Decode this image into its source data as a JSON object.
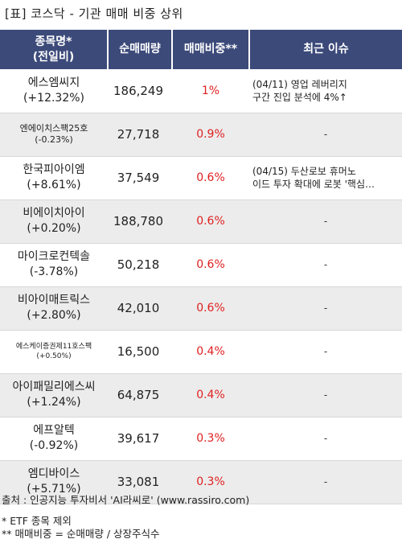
{
  "title": "[표] 코스닥 - 기관 매매 비중 상위",
  "headers": {
    "name_line1": "종목명*",
    "name_line2": "(전일비)",
    "volume": "순매매량",
    "ratio": "매매비중**",
    "issue": "최근 이슈"
  },
  "rows": [
    {
      "name": "에스엠씨지",
      "change": "(+12.32%)",
      "volume": "186,249",
      "ratio": "1%",
      "issue_line1": "(04/11) 영업 레버리지",
      "issue_line2": "구간 진입 분석에 4%↑"
    },
    {
      "name": "엔에이치스팩25호",
      "change": "(-0.23%)",
      "volume": "27,718",
      "ratio": "0.9%",
      "issue_line1": "-",
      "issue_line2": ""
    },
    {
      "name": "한국피아이엠",
      "change": "(+8.61%)",
      "volume": "37,549",
      "ratio": "0.6%",
      "issue_line1": "(04/15) 두산로보 휴머노",
      "issue_line2": "이드 투자 확대에 로봇 '핵심…"
    },
    {
      "name": "비에이치아이",
      "change": "(+0.20%)",
      "volume": "188,780",
      "ratio": "0.6%",
      "issue_line1": "-",
      "issue_line2": ""
    },
    {
      "name": "마이크로컨텍솔",
      "change": "(-3.78%)",
      "volume": "50,218",
      "ratio": "0.6%",
      "issue_line1": "-",
      "issue_line2": ""
    },
    {
      "name": "비아이매트릭스",
      "change": "(+2.80%)",
      "volume": "42,010",
      "ratio": "0.6%",
      "issue_line1": "-",
      "issue_line2": ""
    },
    {
      "name": "에스케이증권제11호스팩",
      "change": "(+0.50%)",
      "volume": "16,500",
      "ratio": "0.4%",
      "issue_line1": "-",
      "issue_line2": ""
    },
    {
      "name": "아이패밀리에스씨",
      "change": "(+1.24%)",
      "volume": "64,875",
      "ratio": "0.4%",
      "issue_line1": "-",
      "issue_line2": ""
    },
    {
      "name": "에프알텍",
      "change": "(-0.92%)",
      "volume": "39,617",
      "ratio": "0.3%",
      "issue_line1": "-",
      "issue_line2": ""
    },
    {
      "name": "엠디바이스",
      "change": "(+5.71%)",
      "volume": "33,081",
      "ratio": "0.3%",
      "issue_line1": "-",
      "issue_line2": ""
    }
  ],
  "footer": {
    "source": "출처 : 인공지능 투자비서 'AI라씨로' (www.rassiro.com)",
    "note1": "* ETF 종목 제외",
    "note2": "** 매매비중 = 순매매량 / 상장주식수"
  }
}
